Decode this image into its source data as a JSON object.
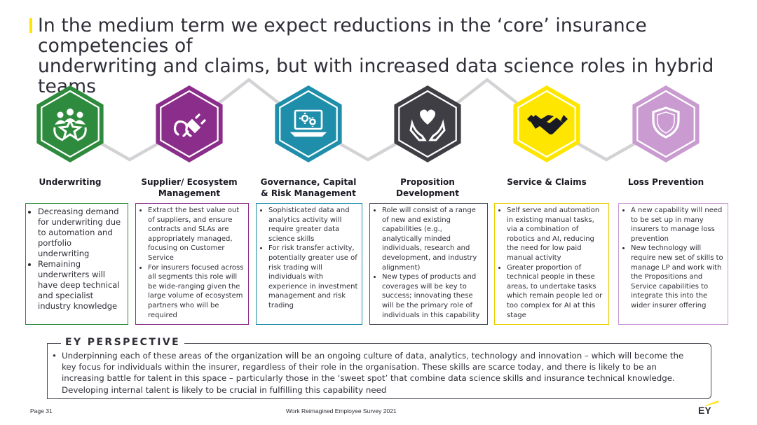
{
  "title": {
    "line1": "In the medium term we expect reductions in the ‘core’ insurance competencies of",
    "line2": "underwriting and claims, but with increased data science roles in hybrid teams"
  },
  "colors": {
    "accent": "#ffe600",
    "green": "#2e8b3d",
    "purple": "#8b2e8b",
    "teal": "#1e8eab",
    "dark": "#3e3e44",
    "yellow": "#ffe600",
    "lilac": "#c99bd1",
    "chain": "#d3d3d6"
  },
  "capabilities": [
    {
      "key": "underwriting",
      "icon": "team-star-icon",
      "heading": [
        "Underwriting"
      ],
      "bullets": [
        "Decreasing demand for underwriting due to automation and portfolio underwriting",
        "Remaining underwriters will have deep technical and specialist industry knowledge"
      ]
    },
    {
      "key": "supplier",
      "icon": "plug-icon",
      "heading": [
        "Supplier/ Ecosystem",
        "Management"
      ],
      "bullets": [
        "Extract the best value out of suppliers, and ensure contracts and SLAs are appropriately managed, focusing on Customer Service",
        "For insurers focused across all segments this role will be wide-ranging given the large volume of ecosystem partners who will be required"
      ]
    },
    {
      "key": "governance",
      "icon": "monitor-gears-icon",
      "heading": [
        "Governance, Capital",
        "& Risk Management"
      ],
      "bullets": [
        "Sophisticated data and analytics activity will require greater data science skills",
        "For risk transfer activity, potentially greater use of risk trading will individuals with experience in investment management and risk trading"
      ]
    },
    {
      "key": "proposition",
      "icon": "hands-heart-icon",
      "heading": [
        "Proposition",
        "Development"
      ],
      "bullets": [
        "Role will consist of a range of new and existing capabilities (e.g., analytically minded individuals, research and development, and industry alignment)",
        "New types of products and coverages will be key to success; innovating these will be the primary role of individuals in this capability"
      ]
    },
    {
      "key": "service",
      "icon": "handshake-icon",
      "heading": [
        "Service & Claims"
      ],
      "bullets": [
        "Self serve and automation in existing manual tasks, via a combination of robotics and AI, reducing the need for low paid manual activity",
        "Greater proportion of technical people in these areas, to undertake tasks which remain people led or too complex for AI at this stage"
      ]
    },
    {
      "key": "loss",
      "icon": "shield-icon",
      "heading": [
        "Loss Prevention"
      ],
      "bullets": [
        "A new capability will need to be set up in many insurers to manage loss prevention",
        "New technology will require new set of skills to manage LP and work with the Propositions and Service capabilities to integrate this into the wider insurer offering"
      ]
    }
  ],
  "perspective": {
    "title": "EY PERSPECTIVE",
    "bullet": "•",
    "lines": [
      "Underpinning each of these areas of the organization will be an ongoing culture of data, analytics, technology and innovation – which will become the",
      "key focus for individuals within the insurer, regardless of their role in the organisation. These skills are scarce today, and there is likely to be an",
      "increasing battle for talent in this space – particularly those in the ‘sweet spot’ that combine data science skills and insurance technical knowledge.",
      "Developing internal talent is likely to be crucial in fulfilling this capability need"
    ]
  },
  "footer": {
    "page": "Page 31",
    "source": "Work Reimagined Employee Survey 2021",
    "logo": "EY"
  }
}
